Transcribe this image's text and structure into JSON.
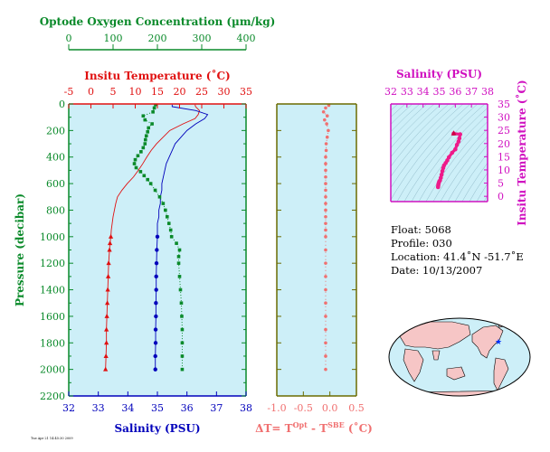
{
  "colors": {
    "oxygen": "#0a8a2a",
    "temperature": "#e01010",
    "salinity": "#0000bb",
    "delta": "#f07070",
    "ts": "#d010c0",
    "ts_points": "#ee1a8a",
    "pressure": "#0a8a2a",
    "panel_bg": "#cdeff8",
    "delta_frame": "#6b6b00"
  },
  "chart_data": [
    {
      "type": "line",
      "name_key": "profiles",
      "oxygen_axis": {
        "title": "Optode Oxygen Concentration (µm/kg)",
        "range": [
          0,
          400
        ],
        "ticks": [
          "0",
          "100",
          "200",
          "300",
          "400"
        ]
      },
      "temperature_axis": {
        "title": "Insitu Temperature (˚C)",
        "range": [
          -5,
          35
        ],
        "ticks": [
          "-5",
          "0",
          "5",
          "10",
          "15",
          "20",
          "25",
          "30",
          "35"
        ]
      },
      "salinity_axis": {
        "title": "Salinity (PSU)",
        "range": [
          32,
          38
        ],
        "ticks": [
          "32",
          "33",
          "34",
          "35",
          "36",
          "37",
          "38"
        ]
      },
      "pressure_axis": {
        "title": "Pressure (decibar)",
        "range": [
          0,
          2200
        ],
        "ticks": [
          "0",
          "200",
          "400",
          "600",
          "800",
          "1000",
          "1200",
          "1400",
          "1600",
          "1800",
          "2000",
          "2200"
        ]
      },
      "series": [
        {
          "key": "temperature",
          "pressure": [
            5,
            20,
            50,
            80,
            110,
            150,
            200,
            300,
            350,
            400,
            450,
            500,
            550,
            600,
            650,
            700,
            750,
            800,
            850,
            900,
            950,
            1000
          ],
          "values": [
            23.5,
            23.6,
            24.5,
            24.2,
            23.5,
            20.8,
            17.8,
            14.8,
            13.6,
            12.6,
            11.7,
            10.7,
            9.6,
            8.2,
            7.0,
            6.0,
            5.6,
            5.3,
            5.0,
            4.8,
            4.6,
            4.5
          ],
          "deep_pressure": [
            1000,
            1050,
            1100,
            1200,
            1300,
            1400,
            1500,
            1600,
            1700,
            1800,
            1900,
            2000
          ],
          "deep_values": [
            4.5,
            4.3,
            4.2,
            4.0,
            3.9,
            3.8,
            3.7,
            3.6,
            3.5,
            3.5,
            3.4,
            3.3
          ]
        },
        {
          "key": "salinity",
          "pressure": [
            5,
            20,
            50,
            80,
            110,
            150,
            200,
            250,
            300,
            350,
            400,
            450,
            500,
            550,
            600,
            650,
            700,
            750,
            800,
            850,
            900,
            950,
            1000
          ],
          "values": [
            35.5,
            35.5,
            36.3,
            36.7,
            36.6,
            36.3,
            36.0,
            35.8,
            35.6,
            35.5,
            35.4,
            35.3,
            35.25,
            35.2,
            35.15,
            35.15,
            35.1,
            35.1,
            35.05,
            35.05,
            35.0,
            35.0,
            35.0
          ],
          "deep_pressure": [
            1000,
            1100,
            1200,
            1300,
            1400,
            1500,
            1600,
            1700,
            1800,
            1900,
            2000
          ],
          "deep_values": [
            35.0,
            34.98,
            34.97,
            34.96,
            34.96,
            34.95,
            34.95,
            34.94,
            34.94,
            34.93,
            34.93
          ]
        },
        {
          "key": "oxygen",
          "pressure": [
            5,
            30,
            60,
            90,
            120,
            150,
            180,
            210,
            240,
            270,
            300,
            330,
            360,
            390,
            420,
            450,
            480,
            510,
            540,
            570,
            600,
            650,
            700,
            750,
            800,
            850,
            900,
            950,
            1000,
            1050,
            1100,
            1150,
            1200,
            1300,
            1400,
            1500,
            1600,
            1700,
            1800,
            1900,
            2000
          ],
          "values": [
            196,
            193,
            190,
            168,
            172,
            188,
            180,
            178,
            175,
            173,
            172,
            168,
            163,
            156,
            150,
            148,
            152,
            162,
            170,
            178,
            185,
            195,
            205,
            213,
            218,
            222,
            226,
            230,
            232,
            243,
            250,
            248,
            248,
            250,
            252,
            254,
            255,
            256,
            256,
            256,
            256
          ]
        }
      ]
    },
    {
      "type": "scatter",
      "name_key": "delta_t",
      "xlabel": "ΔT= T",
      "xlabel_sup1": "Opt",
      "xlabel_mid": " - T",
      "xlabel_sup2": "SBE",
      "xlabel_tail": " (˚C)",
      "x_range": [
        -1.0,
        0.5
      ],
      "x_ticks": [
        "-1.0",
        "-0.5",
        "0.0",
        "0.5"
      ],
      "pressure": [
        10,
        30,
        60,
        90,
        120,
        150,
        200,
        250,
        300,
        350,
        400,
        450,
        500,
        550,
        600,
        650,
        700,
        750,
        800,
        850,
        900,
        950,
        1000,
        1100,
        1200,
        1300,
        1400,
        1500,
        1600,
        1700,
        1800,
        1900,
        2000
      ],
      "values": [
        -0.02,
        -0.08,
        -0.12,
        -0.05,
        -0.1,
        -0.06,
        -0.03,
        -0.05,
        -0.07,
        -0.07,
        -0.08,
        -0.08,
        -0.08,
        -0.08,
        -0.08,
        -0.08,
        -0.08,
        -0.08,
        -0.08,
        -0.08,
        -0.08,
        -0.08,
        -0.08,
        -0.08,
        -0.08,
        -0.08,
        -0.08,
        -0.08,
        -0.08,
        -0.08,
        -0.08,
        -0.08,
        -0.08
      ]
    },
    {
      "type": "scatter",
      "name_key": "ts_diagram",
      "xlabel": "Salinity (PSU)",
      "ylabel": "Insitu Temperature (˚C)",
      "x_range": [
        32,
        38
      ],
      "y_range": [
        -2,
        35
      ],
      "x_ticks": [
        "32",
        "33",
        "34",
        "35",
        "36",
        "37",
        "38"
      ],
      "y_ticks": [
        "0",
        "5",
        "10",
        "15",
        "20",
        "25",
        "30",
        "35"
      ],
      "salinity": [
        34.93,
        34.94,
        34.95,
        34.97,
        35.0,
        35.05,
        35.1,
        35.15,
        35.2,
        35.25,
        35.3,
        35.4,
        35.5,
        35.6,
        35.8,
        36.0,
        36.1,
        36.2,
        36.25,
        36.3,
        35.9
      ],
      "temperature": [
        3.5,
        4.0,
        4.5,
        5.0,
        5.6,
        6.0,
        7.0,
        8.2,
        9.6,
        10.7,
        11.7,
        12.6,
        13.6,
        14.8,
        16.5,
        17.8,
        19.5,
        20.8,
        22.0,
        23.5,
        23.8
      ]
    }
  ],
  "info": {
    "float": "Float:  5068",
    "profile": "Profile:  030",
    "location": "Location:  41.4˚N  -51.7˚E",
    "date": "Date:  10/13/2007"
  },
  "footer_note": "Tue Apr 21 14:45:30 2009",
  "map": {
    "marker": "★"
  }
}
